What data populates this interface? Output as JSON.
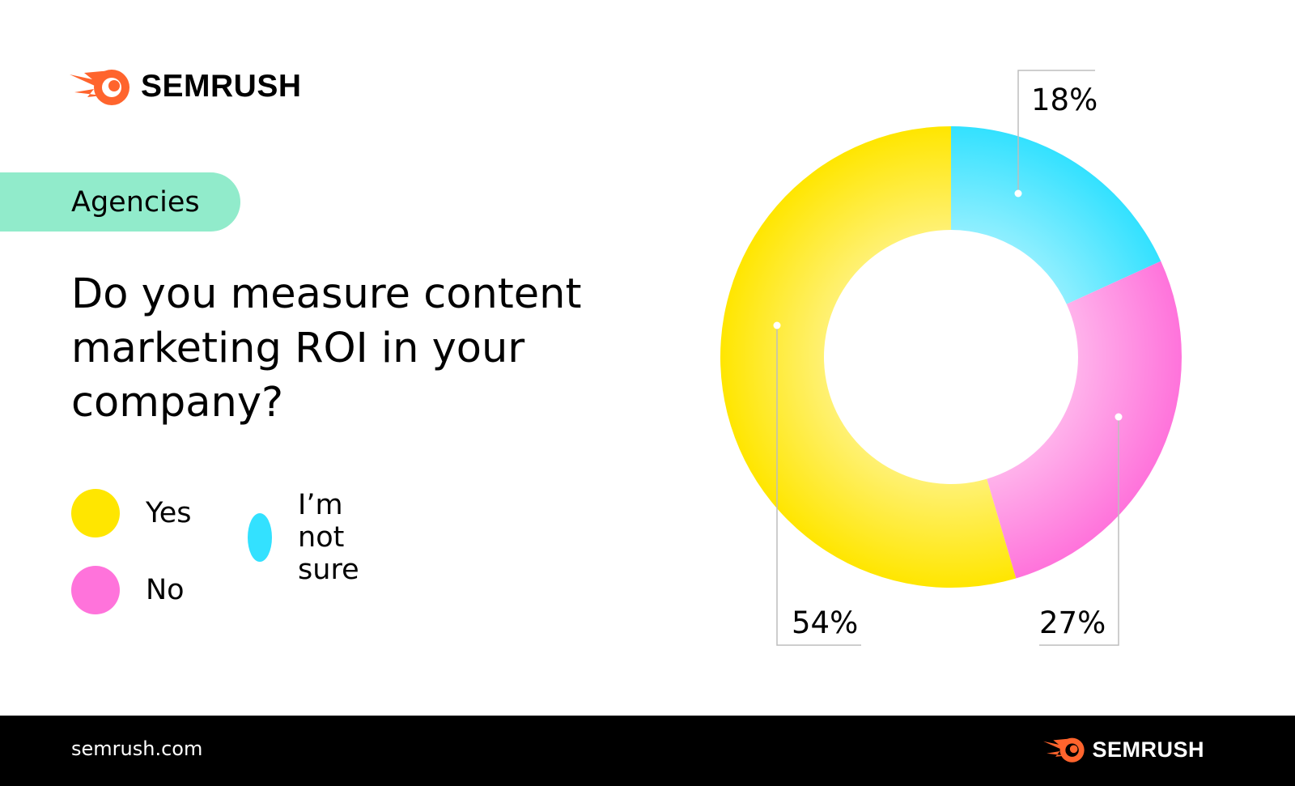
{
  "brand": {
    "name": "SEMRUSH",
    "accent_color": "#FF642D"
  },
  "tag": {
    "label": "Agencies",
    "color": "#91EBCB"
  },
  "question": "Do you measure content marketing ROI in your company?",
  "legend": {
    "items": [
      {
        "label": "Yes",
        "color": "#FFE600"
      },
      {
        "label": "I’m not sure",
        "color": "#33E1FF"
      },
      {
        "label": "No",
        "color": "#FF73DB"
      }
    ]
  },
  "chart_data": {
    "type": "pie",
    "style": "donut",
    "title": "Do you measure content marketing ROI in your company?",
    "slices": [
      {
        "name": "I’m not sure",
        "value": 18,
        "label": "18%",
        "color": "#33E1FF"
      },
      {
        "name": "No",
        "value": 27,
        "label": "27%",
        "color": "#FF73DB"
      },
      {
        "name": "Yes",
        "value": 54,
        "label": "54%",
        "color": "#FFE600"
      }
    ],
    "legend_position": "left"
  },
  "footer": {
    "url": "semrush.com",
    "brand": "SEMRUSH"
  }
}
